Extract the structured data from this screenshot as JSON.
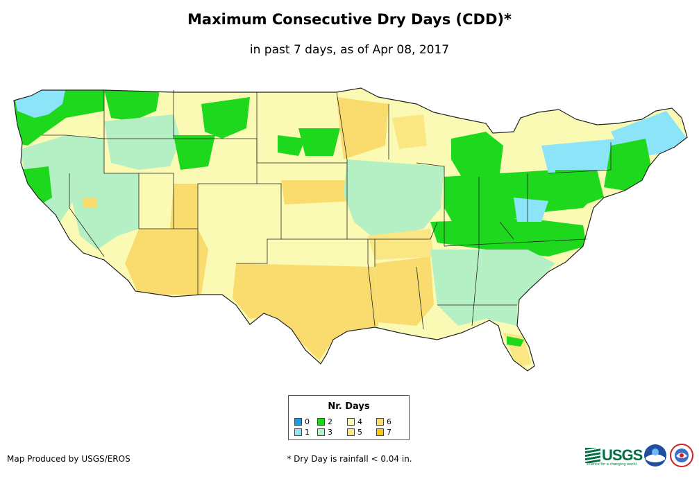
{
  "title": "Maximum Consecutive Dry Days (CDD)*",
  "subtitle": "in past 7 days, as of Apr 08, 2017",
  "legend": {
    "title": "Nr. Days",
    "items": [
      {
        "label": "0",
        "color": "#1a9ce6"
      },
      {
        "label": "1",
        "color": "#8ce4f8"
      },
      {
        "label": "2",
        "color": "#1ed81e"
      },
      {
        "label": "3",
        "color": "#b4f0c4"
      },
      {
        "label": "4",
        "color": "#fafab4"
      },
      {
        "label": "5",
        "color": "#fae682"
      },
      {
        "label": "6",
        "color": "#fadc6e"
      },
      {
        "label": "7",
        "color": "#fac800"
      }
    ]
  },
  "credit": "Map Produced by USGS/EROS",
  "footnote": "* Dry Day is rainfall < 0.04 in.",
  "logos": {
    "usgs_text": "USGS",
    "usgs_tagline": "science for a changing world",
    "noaa_icon": "noaa-logo",
    "nws_icon": "national-weather-service-logo"
  }
}
